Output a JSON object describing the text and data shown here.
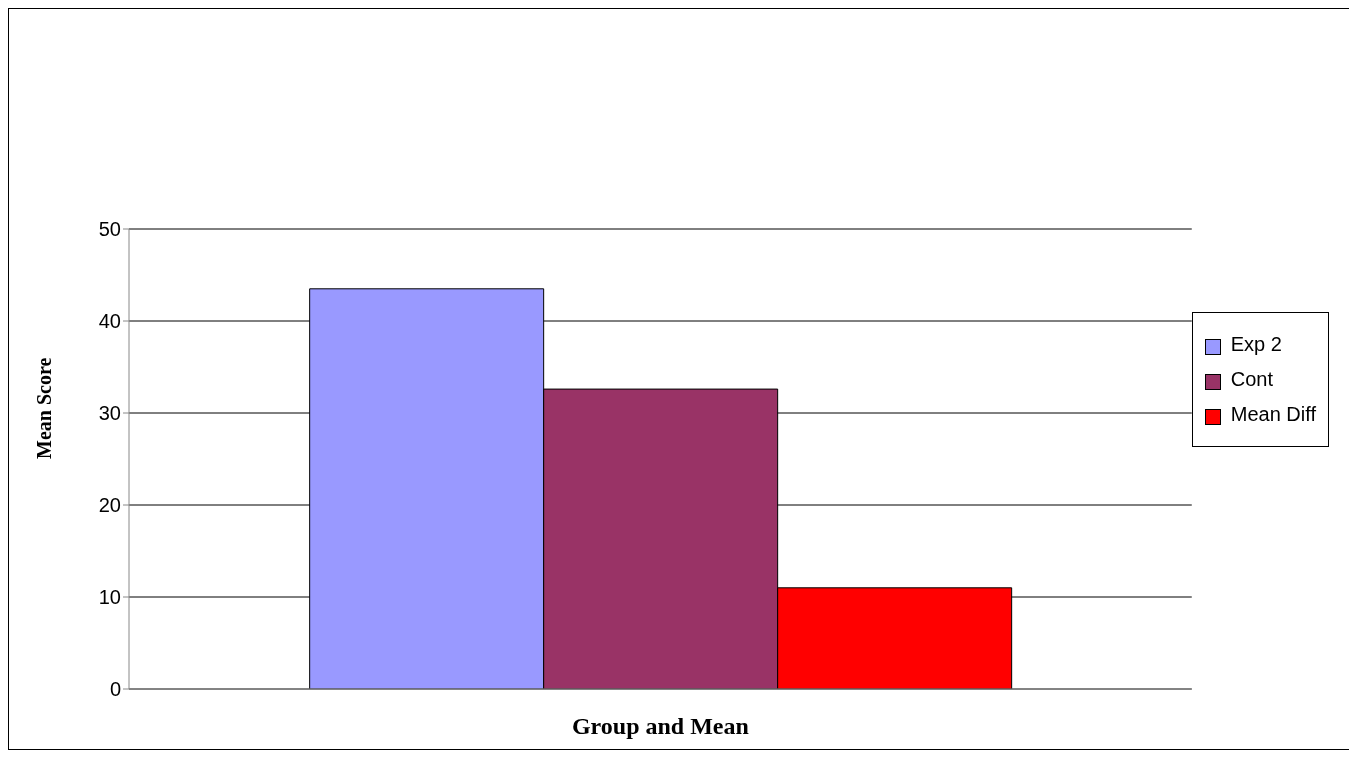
{
  "chart_data": {
    "type": "bar",
    "xlabel": "Group and Mean",
    "ylabel": "Mean Score",
    "categories": [
      null
    ],
    "series": [
      {
        "name": "Exp 2",
        "color": "#9999ff",
        "values": [
          43.5
        ]
      },
      {
        "name": "Cont",
        "color": "#993366",
        "values": [
          32.6
        ]
      },
      {
        "name": "Mean Diff",
        "color": "#ff0000",
        "values": [
          11.0
        ]
      }
    ],
    "ylim": [
      0,
      50
    ],
    "yticks": [
      0,
      10,
      20,
      30,
      40,
      50
    ],
    "grid": "y",
    "legend": "right"
  }
}
